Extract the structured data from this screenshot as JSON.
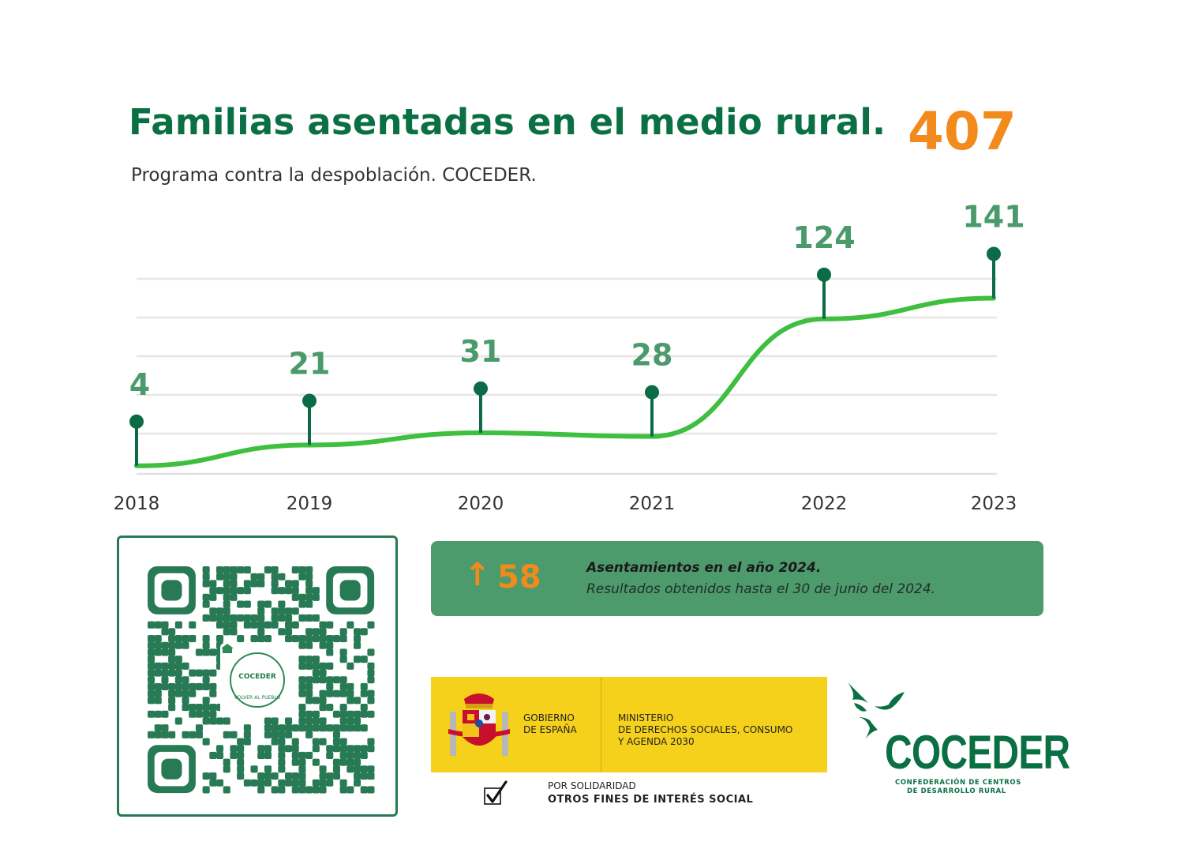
{
  "header": {
    "title": "Familias asentadas en el medio rural.",
    "total": "407",
    "subtitle": "Programa contra la despoblación. COCEDER."
  },
  "colors": {
    "brand_green": "#0a7043",
    "marker_green": "#0b6b46",
    "label_green": "#4a9a6c",
    "line_green": "#3fbf3f",
    "accent_orange": "#f28a1c",
    "banner_green": "#4d9a6c",
    "gov_yellow": "#f5d11b"
  },
  "chart_data": {
    "type": "line",
    "title": "Familias asentadas en el medio rural.",
    "subtitle": "Programa contra la despoblación. COCEDER.",
    "categories": [
      "2018",
      "2019",
      "2020",
      "2021",
      "2022",
      "2023"
    ],
    "values": [
      4,
      21,
      31,
      28,
      124,
      141
    ],
    "value_labels": [
      "4",
      "21",
      "31",
      "28",
      "124",
      "141"
    ],
    "series": [
      {
        "name": "Familias asentadas",
        "values": [
          4,
          21,
          31,
          28,
          124,
          141
        ]
      }
    ],
    "ylim": [
      0,
      160
    ],
    "grid": true,
    "xlabel": "",
    "ylabel": ""
  },
  "banner": {
    "arrow_icon": "arrow-up-icon",
    "arrow_glyph": "↑",
    "value": "58",
    "title": "Asentamientos en el año 2024.",
    "subtitle": "Resultados obtenidos hasta el 30 de junio del 2024."
  },
  "qr": {
    "icon": "qr-code-icon",
    "badge_name": "COCEDER",
    "badge_tagline": "VOLVER AL PUEBLO"
  },
  "government": {
    "line1": "GOBIERNO",
    "line2": "DE ESPAÑA",
    "ministry_line1": "MINISTERIO",
    "ministry_line2": "DE DERECHOS SOCIALES, CONSUMO",
    "ministry_line3": "Y AGENDA 2030"
  },
  "solidarity": {
    "line1": "POR SOLIDARIDAD",
    "line2": "OTROS FINES DE INTERÉS SOCIAL"
  },
  "coceder": {
    "name": "COCEDER",
    "sub1": "CONFEDERACIÓN DE CENTROS",
    "sub2": "DE DESARROLLO RURAL"
  }
}
